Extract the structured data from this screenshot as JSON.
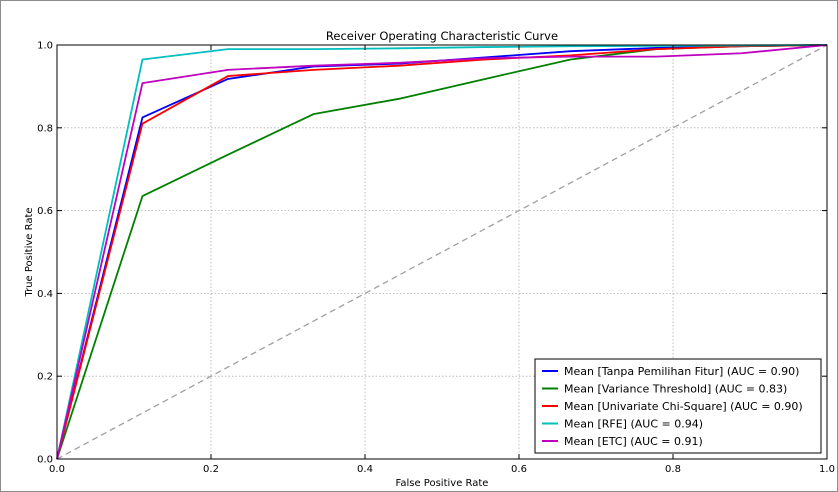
{
  "chart_data": {
    "type": "line",
    "title": "Receiver Operating Characteristic Curve",
    "xlabel": "False Positive Rate",
    "ylabel": "True Positive Rate",
    "xlim": [
      0,
      1
    ],
    "ylim": [
      0,
      1
    ],
    "xticks": [
      "0.0",
      "0.2",
      "0.4",
      "0.6",
      "0.8",
      "1.0"
    ],
    "yticks": [
      "0.0",
      "0.2",
      "0.4",
      "0.6",
      "0.8",
      "1.0"
    ],
    "grid": true,
    "legend_position": "lower-right",
    "series": [
      {
        "name": "Mean [Tanpa Pemilihan Fitur] (AUC = 0.90)",
        "color": "#0000ff",
        "points": [
          [
            0,
            0
          ],
          [
            0.111,
            0.825
          ],
          [
            0.222,
            0.918
          ],
          [
            0.333,
            0.948
          ],
          [
            0.444,
            0.955
          ],
          [
            0.556,
            0.97
          ],
          [
            0.667,
            0.985
          ],
          [
            0.778,
            0.993
          ],
          [
            0.889,
            0.997
          ],
          [
            1.0,
            1.0
          ]
        ]
      },
      {
        "name": "Mean [Variance Threshold] (AUC = 0.83)",
        "color": "#008000",
        "points": [
          [
            0,
            0
          ],
          [
            0.111,
            0.635
          ],
          [
            0.222,
            0.735
          ],
          [
            0.333,
            0.833
          ],
          [
            0.444,
            0.87
          ],
          [
            0.556,
            0.918
          ],
          [
            0.667,
            0.965
          ],
          [
            0.778,
            0.99
          ],
          [
            0.889,
            0.997
          ],
          [
            1.0,
            1.0
          ]
        ]
      },
      {
        "name": "Mean [Univariate Chi-Square] (AUC = 0.90)",
        "color": "#ff0000",
        "points": [
          [
            0,
            0
          ],
          [
            0.111,
            0.81
          ],
          [
            0.222,
            0.925
          ],
          [
            0.333,
            0.94
          ],
          [
            0.444,
            0.95
          ],
          [
            0.556,
            0.965
          ],
          [
            0.667,
            0.975
          ],
          [
            0.778,
            0.99
          ],
          [
            0.889,
            0.997
          ],
          [
            1.0,
            1.0
          ]
        ]
      },
      {
        "name": "Mean [RFE] (AUC = 0.94)",
        "color": "#00bfbf",
        "points": [
          [
            0,
            0
          ],
          [
            0.111,
            0.965
          ],
          [
            0.222,
            0.99
          ],
          [
            0.333,
            0.99
          ],
          [
            0.444,
            0.992
          ],
          [
            0.556,
            0.995
          ],
          [
            0.667,
            0.997
          ],
          [
            0.778,
            0.998
          ],
          [
            0.889,
            0.999
          ],
          [
            1.0,
            1.0
          ]
        ]
      },
      {
        "name": "Mean [ETC] (AUC = 0.91)",
        "color": "#bf00bf",
        "points": [
          [
            0,
            0
          ],
          [
            0.111,
            0.908
          ],
          [
            0.222,
            0.94
          ],
          [
            0.333,
            0.95
          ],
          [
            0.444,
            0.957
          ],
          [
            0.556,
            0.968
          ],
          [
            0.667,
            0.972
          ],
          [
            0.778,
            0.972
          ],
          [
            0.889,
            0.98
          ],
          [
            1.0,
            1.0
          ]
        ]
      }
    ],
    "reference_line": {
      "points": [
        [
          0,
          0
        ],
        [
          1,
          1
        ]
      ],
      "color": "#a0a0a0",
      "style": "dashed"
    }
  }
}
